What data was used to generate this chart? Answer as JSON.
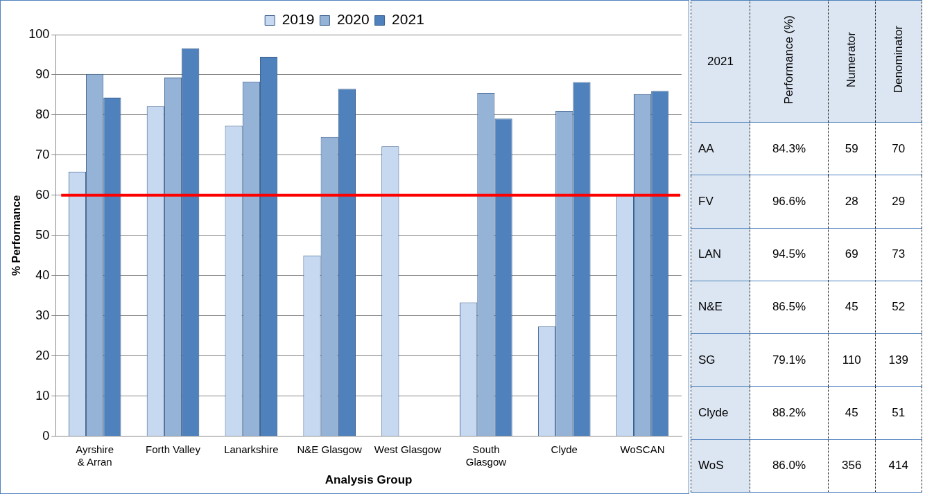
{
  "chart_data": [
    {
      "type": "bar",
      "xlabel": "Analysis Group",
      "ylabel": "% Performance",
      "categories": [
        "Ayrshire & Arran",
        "Forth Valley",
        "Lanarkshire",
        "N&E Glasgow",
        "West Glasgow",
        "South Glasgow",
        "Clyde",
        "WoSCAN"
      ],
      "series": [
        {
          "name": "2019",
          "color": "#c6d9f1",
          "values": [
            65.9,
            82.2,
            77.3,
            45,
            72.2,
            33.3,
            27.3,
            60
          ]
        },
        {
          "name": "2020",
          "color": "#95b3d7",
          "values": [
            90.2,
            89.3,
            88.3,
            74.5,
            null,
            85.5,
            81,
            85.2
          ]
        },
        {
          "name": "2021",
          "color": "#4f81bd",
          "values": [
            84.3,
            96.6,
            94.5,
            86.5,
            null,
            79.1,
            88.2,
            86
          ]
        }
      ],
      "ylim": [
        0,
        100
      ],
      "yticks": [
        0,
        10,
        20,
        30,
        40,
        50,
        60,
        70,
        80,
        90,
        100
      ],
      "grid": "y",
      "legend": "top",
      "ref_lines": [
        {
          "axis": "y",
          "value": 60,
          "color": "#ff0000"
        }
      ]
    },
    {
      "type": "other",
      "title": "2021",
      "categories": [
        "Performance (%)",
        "Numerator",
        "Denominator"
      ],
      "y_categories": [
        "AA",
        "FV",
        "LAN",
        "N&E",
        "SG",
        "Clyde",
        "WoS"
      ],
      "cell_labels": [
        [
          "84.3%",
          "59",
          "70"
        ],
        [
          "96.6%",
          "28",
          "29"
        ],
        [
          "94.5%",
          "69",
          "73"
        ],
        [
          "86.5%",
          "45",
          "52"
        ],
        [
          "79.1%",
          "110",
          "139"
        ],
        [
          "88.2%",
          "45",
          "51"
        ],
        [
          "86.0%",
          "356",
          "414"
        ]
      ]
    }
  ]
}
